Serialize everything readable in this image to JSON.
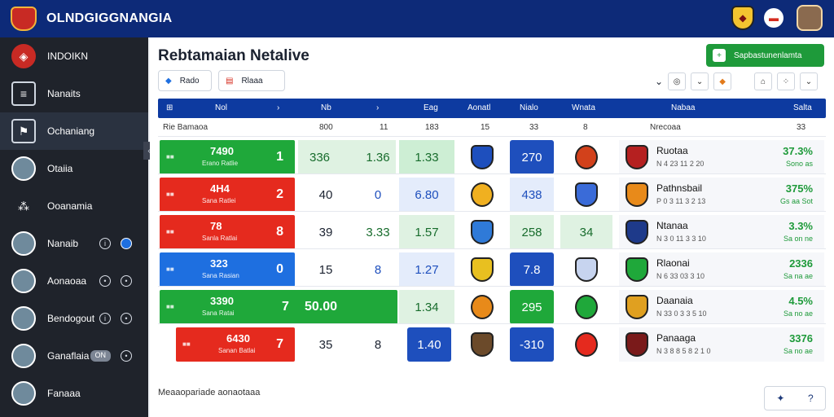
{
  "app": {
    "title": "OLNDGIGGNANGIA"
  },
  "top_icons": [
    "notification-bell-icon",
    "flag-icon",
    "club-crest-icon",
    "user-avatar"
  ],
  "sidebar": {
    "items": [
      {
        "label": "INDOIKN",
        "icon": "club-logo-icon"
      },
      {
        "label": "Nanaits",
        "icon": "document-stack-icon"
      },
      {
        "label": "Ochaniang",
        "icon": "flag-icon",
        "active": true
      },
      {
        "label": "Otaiia",
        "icon": "user-avatar"
      },
      {
        "label": "Ooanamia",
        "icon": "grid-dots-icon"
      },
      {
        "label": "Nanaib",
        "icon": "user-avatar"
      },
      {
        "label": "Aonaoaa",
        "icon": "user-avatar"
      },
      {
        "label": "Bendogout",
        "icon": "user-avatar"
      },
      {
        "label": "Ganaflaia",
        "icon": "user-avatar",
        "badge": "ON"
      },
      {
        "label": "Fanaaa",
        "icon": "user-avatar"
      }
    ]
  },
  "page": {
    "title": "Rebtamaian Netalive",
    "primary_button": "Sapbastunenlamta",
    "filter1": "Rado",
    "filter2": "Rlaaa"
  },
  "header": {
    "c1": "Nol",
    "c2": "Nb",
    "c3": "Eag",
    "c4": "Aonatl",
    "c5": "Nialo",
    "c6": "Wnata",
    "c7": "Nabaa",
    "c8": "Salta"
  },
  "subheader": {
    "left": "Rie Bamaoa",
    "n1": "800",
    "n2": "11",
    "n3": "183",
    "n4": "15",
    "n5": "33",
    "n6": "8",
    "team": "Nrecoaa",
    "right": "33"
  },
  "rows": [
    {
      "num": "7490",
      "sub": "Erano Ratlie",
      "val": "1",
      "c1": "336",
      "c2": "1.36",
      "c3": "1.33",
      "c5": "270",
      "team": "Ruotaa",
      "meta": "N 4 23 11 2 20",
      "pct": "37.3%",
      "delta": "Sono as",
      "color": "#1fa83a"
    },
    {
      "num": "4H4",
      "sub": "Sana Ratlei",
      "val": "2",
      "c1": "40",
      "c2": "0",
      "c3": "6.80",
      "c5": "438",
      "team": "Pathnsbail",
      "meta": "P 0 3 11 3 2 13",
      "pct": "375%",
      "delta": "Gs aa Sot",
      "color": "#e52a1e"
    },
    {
      "num": "78",
      "sub": "Sanla Ratlai",
      "val": "8",
      "c1": "39",
      "c2": "3.33",
      "c3": "1.57",
      "c5": "258",
      "c6": "34",
      "team": "Ntanaa",
      "meta": "N 3 0 11 3 3 10",
      "pct": "3.3%",
      "delta": "Sa on ne",
      "color": "#e52a1e"
    },
    {
      "num": "323",
      "sub": "Sana Rasian",
      "val": "0",
      "c1": "15",
      "c2": "8",
      "c3": "1.27",
      "c5": "7.8",
      "team": "Rlaonai",
      "meta": "N 6 33 03 3 10",
      "pct": "2336",
      "delta": "Sa na ae",
      "color": "#1e6fe0"
    },
    {
      "num": "3390",
      "sub": "Sana Ratai",
      "val": "7",
      "c1": "50.00",
      "c2": "",
      "c3": "1.34",
      "c5": "295",
      "team": "Daanaia",
      "meta": "N 33 0 3 3 5 10",
      "pct": "4.5%",
      "delta": "Sa no ae",
      "color": "#1fa83a"
    },
    {
      "num": "6430",
      "sub": "Sanan Batlai",
      "val": "7",
      "c1": "35",
      "c2": "8",
      "c3": "1.40",
      "c5": "-310",
      "team": "Panaaga",
      "meta": "N 3 8 8 5 8 2 1 0",
      "pct": "3376",
      "delta": "Sa no ae",
      "color": "#e52a1e"
    }
  ],
  "footer": {
    "label": "Meaaopariade aonaotaaa"
  }
}
